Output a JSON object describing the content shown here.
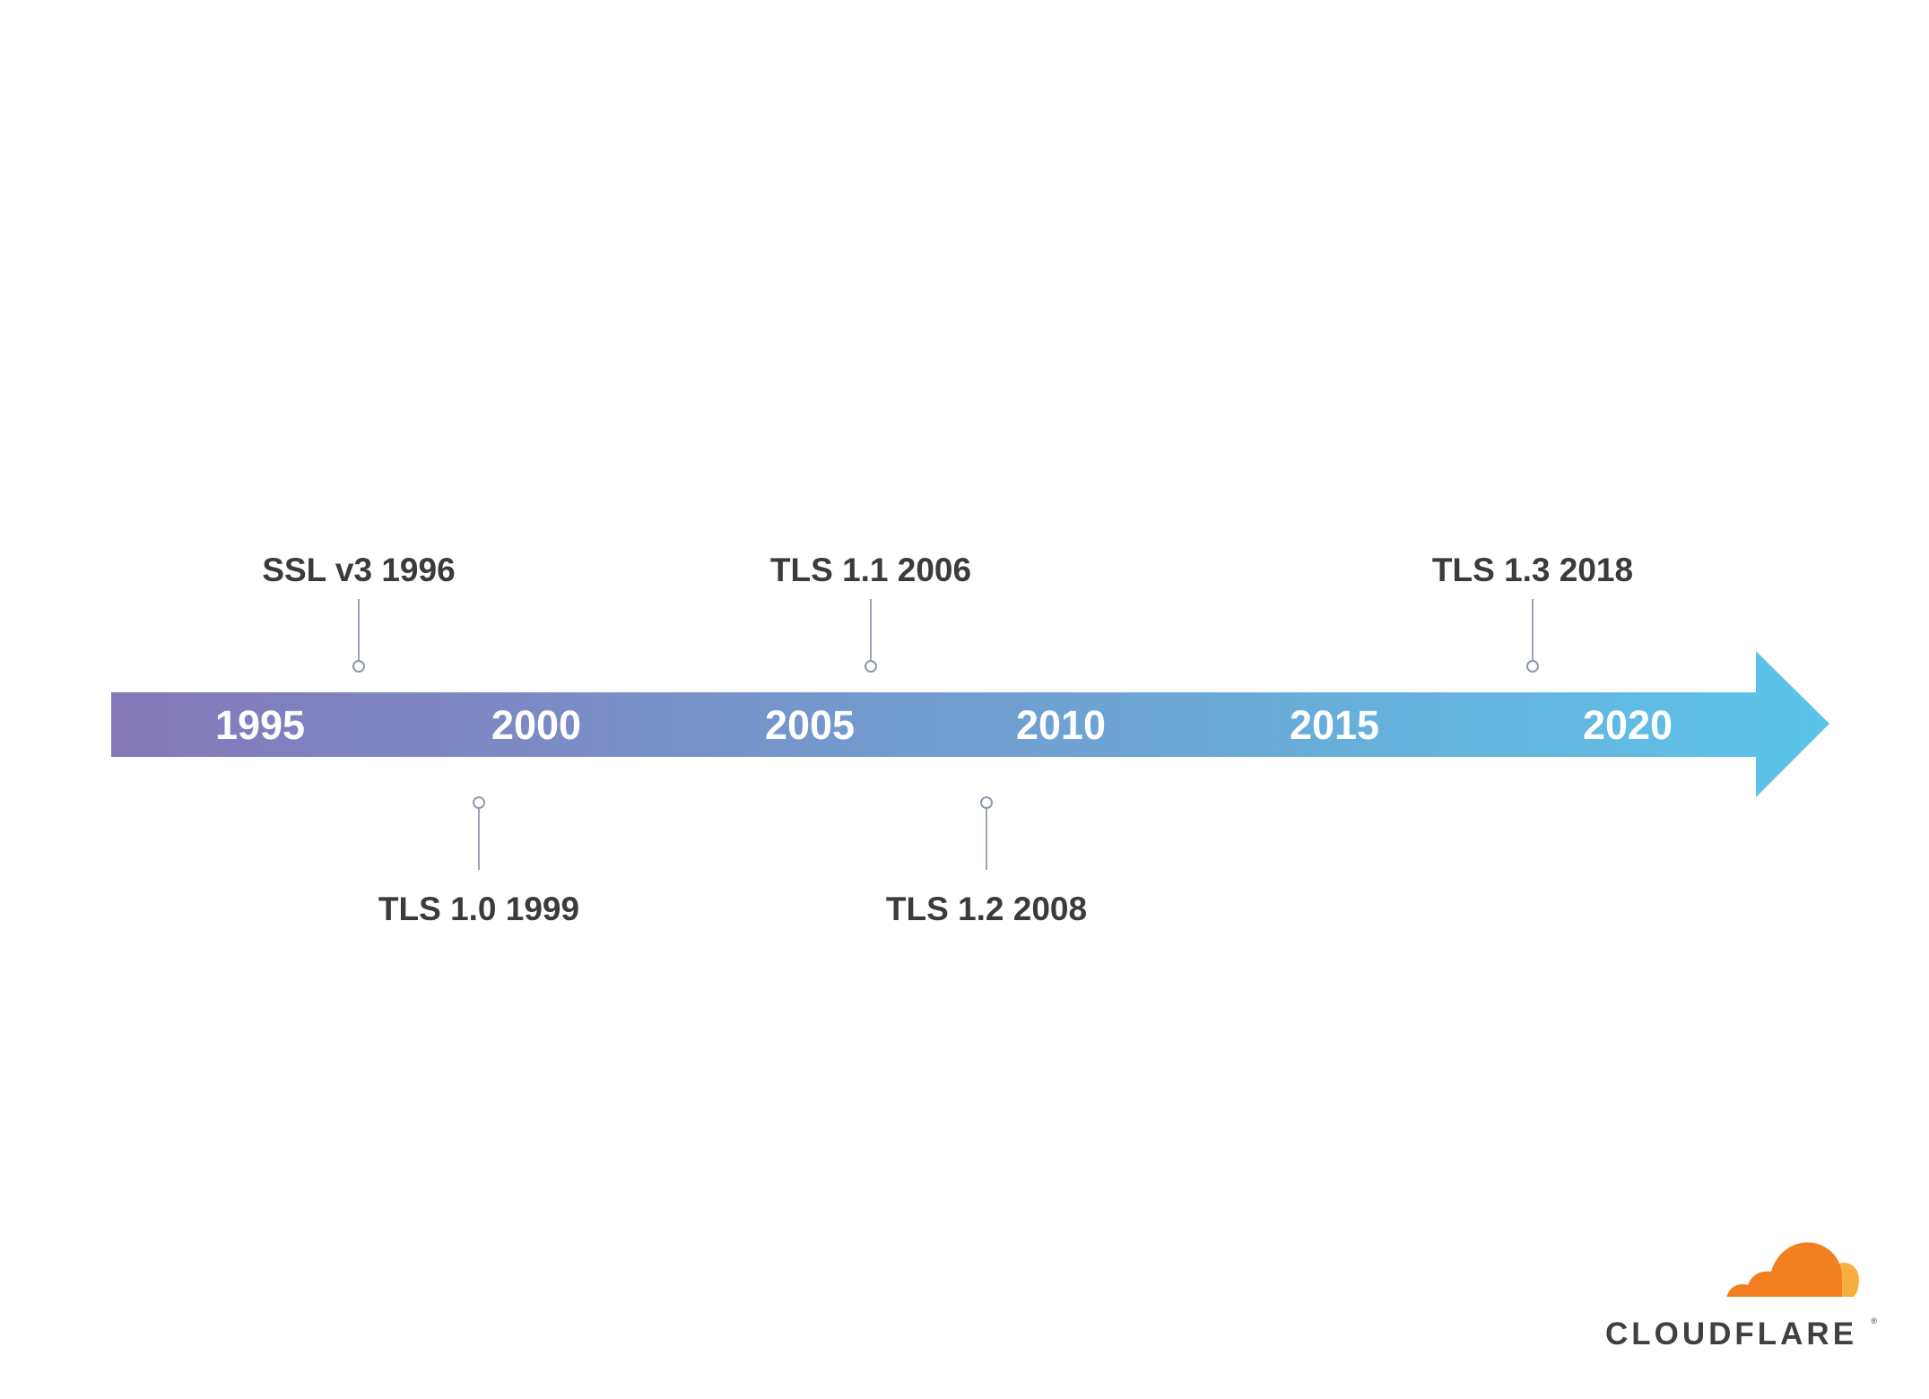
{
  "colors": {
    "arrow_start": "#8578b9",
    "arrow_end": "#5cc4e9",
    "year_text": "#ffffff",
    "event_text": "#3b3b3b",
    "connector": "#9aa3b5",
    "logo_orange": "#f38020",
    "logo_light_orange": "#faae40",
    "logo_text": "#404041"
  },
  "timeline": {
    "years": [
      "1995",
      "2000",
      "2005",
      "2010",
      "2015",
      "2020"
    ],
    "events": [
      {
        "label": "SSL v3 1996",
        "year": 1996,
        "position": "above"
      },
      {
        "label": "TLS 1.0 1999",
        "year": 1999,
        "position": "below"
      },
      {
        "label": "TLS 1.1 2006",
        "year": 2006,
        "position": "above"
      },
      {
        "label": "TLS 1.2 2008",
        "year": 2008,
        "position": "below"
      },
      {
        "label": "TLS 1.3 2018",
        "year": 2018,
        "position": "above"
      }
    ]
  },
  "logo": {
    "wordmark": "CLOUDFLARE",
    "icon": "cloud-icon"
  }
}
